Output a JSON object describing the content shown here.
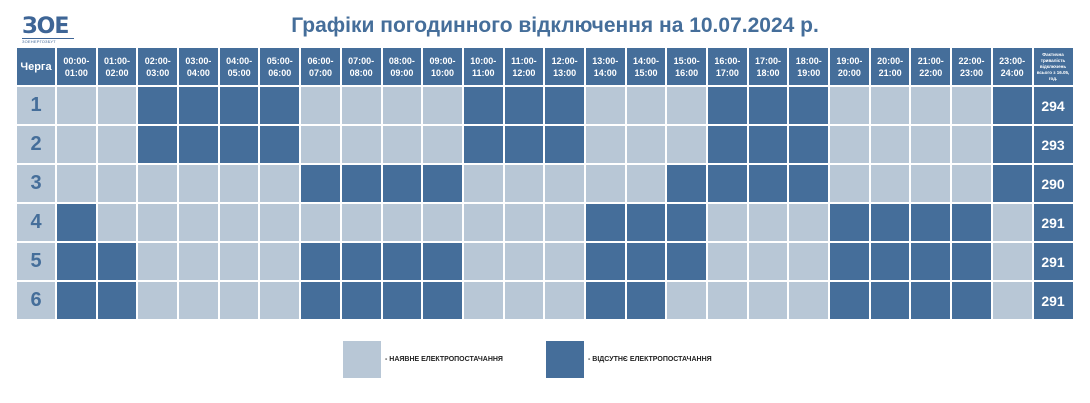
{
  "logo": {
    "mark": "ЗОЕ",
    "sub": "ЗОЕНЕРГОЗБУТ"
  },
  "title": "Графіки погодинного відключення на 10.07.2024 р.",
  "header": {
    "queue": "Черга",
    "total": "Фактична тривалість відключень всього з 16.05, год.",
    "hours": [
      "00:00-01:00",
      "01:00-02:00",
      "02:00-03:00",
      "03:00-04:00",
      "04:00-05:00",
      "05:00-06:00",
      "06:00-07:00",
      "07:00-08:00",
      "08:00-09:00",
      "09:00-10:00",
      "10:00-11:00",
      "11:00-12:00",
      "12:00-13:00",
      "13:00-14:00",
      "14:00-15:00",
      "15:00-16:00",
      "16:00-17:00",
      "17:00-18:00",
      "18:00-19:00",
      "19:00-20:00",
      "20:00-21:00",
      "21:00-22:00",
      "22:00-23:00",
      "23:00-24:00"
    ]
  },
  "colors": {
    "available": "#b8c7d6",
    "outage": "#456e9a"
  },
  "rows": [
    {
      "queue": "1",
      "total": "294",
      "off": [
        0,
        0,
        1,
        1,
        1,
        1,
        0,
        0,
        0,
        0,
        1,
        1,
        1,
        0,
        0,
        0,
        1,
        1,
        1,
        0,
        0,
        0,
        0,
        1
      ]
    },
    {
      "queue": "2",
      "total": "293",
      "off": [
        0,
        0,
        1,
        1,
        1,
        1,
        0,
        0,
        0,
        0,
        1,
        1,
        1,
        0,
        0,
        0,
        1,
        1,
        1,
        0,
        0,
        0,
        0,
        1
      ]
    },
    {
      "queue": "3",
      "total": "290",
      "off": [
        0,
        0,
        0,
        0,
        0,
        0,
        1,
        1,
        1,
        1,
        0,
        0,
        0,
        0,
        0,
        1,
        1,
        1,
        1,
        0,
        0,
        0,
        0,
        1
      ]
    },
    {
      "queue": "4",
      "total": "291",
      "off": [
        1,
        0,
        0,
        0,
        0,
        0,
        0,
        0,
        0,
        0,
        0,
        0,
        0,
        1,
        1,
        1,
        0,
        0,
        0,
        1,
        1,
        1,
        1,
        0
      ]
    },
    {
      "queue": "5",
      "total": "291",
      "off": [
        1,
        1,
        0,
        0,
        0,
        0,
        1,
        1,
        1,
        1,
        0,
        0,
        0,
        1,
        1,
        1,
        0,
        0,
        0,
        1,
        1,
        1,
        1,
        0
      ]
    },
    {
      "queue": "6",
      "total": "291",
      "off": [
        1,
        1,
        0,
        0,
        0,
        0,
        1,
        1,
        1,
        1,
        0,
        0,
        0,
        1,
        1,
        0,
        0,
        0,
        0,
        1,
        1,
        1,
        1,
        0
      ]
    }
  ],
  "legend": {
    "available": "- НАЯВНЕ ЕЛЕКТРОПОСТАЧАННЯ",
    "outage": "- ВІДСУТНЄ ЕЛЕКТРОПОСТАЧАННЯ"
  }
}
